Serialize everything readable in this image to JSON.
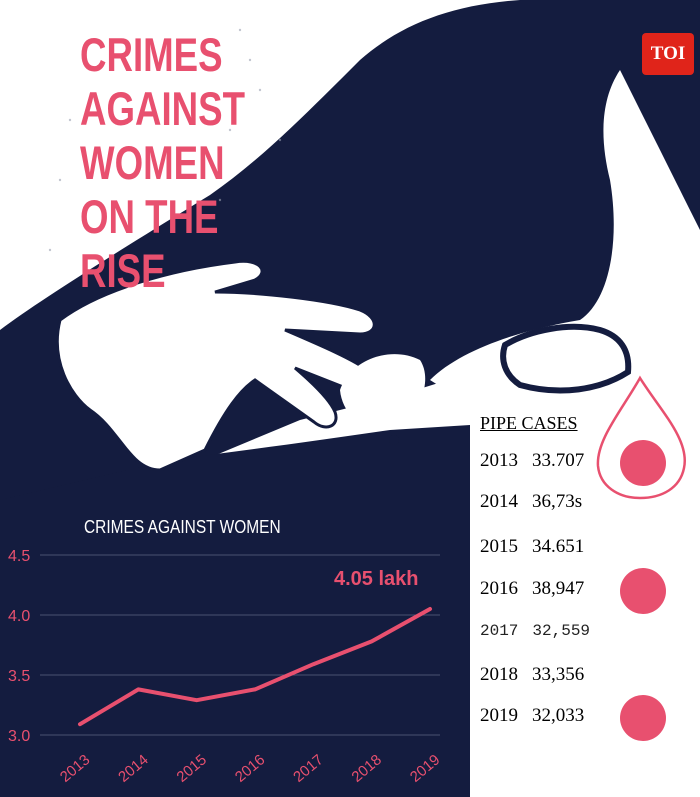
{
  "headline": [
    "CRIMES",
    "AGAINST",
    "WOMEN",
    "ON THE",
    "RISE"
  ],
  "logo": "TOI",
  "colors": {
    "accent": "#e8506f",
    "navy": "#141c3f",
    "logo_red": "#e0241a"
  },
  "chart_data": {
    "type": "line",
    "title": "CRIMES AGAINST WOMEN",
    "x": [
      "2013",
      "2014",
      "2015",
      "2016",
      "2017",
      "2018",
      "2019"
    ],
    "series": [
      {
        "values": [
          3.09,
          3.38,
          3.29,
          3.38,
          3.59,
          3.78,
          4.05
        ]
      }
    ],
    "yticks": [
      "3.0",
      "3.5",
      "4.0",
      "4.5"
    ],
    "ylim": [
      3.0,
      4.5
    ],
    "annotation": "4.05 lakh",
    "grid": true
  },
  "cases_table": {
    "header": "PIPE CASES",
    "rows": [
      {
        "year": "2013",
        "value": "33.707",
        "dot": true
      },
      {
        "year": "2014",
        "value": "36,73s",
        "dot": false
      },
      {
        "year": "2015",
        "value": "34.651",
        "dot": false
      },
      {
        "year": "2016",
        "value": "38,947",
        "dot": true
      },
      {
        "year": "2017",
        "value": "32,559",
        "dot": false
      },
      {
        "year": "2018",
        "value": "33,356",
        "dot": false
      },
      {
        "year": "2019",
        "value": "32,033",
        "dot": true
      }
    ]
  }
}
